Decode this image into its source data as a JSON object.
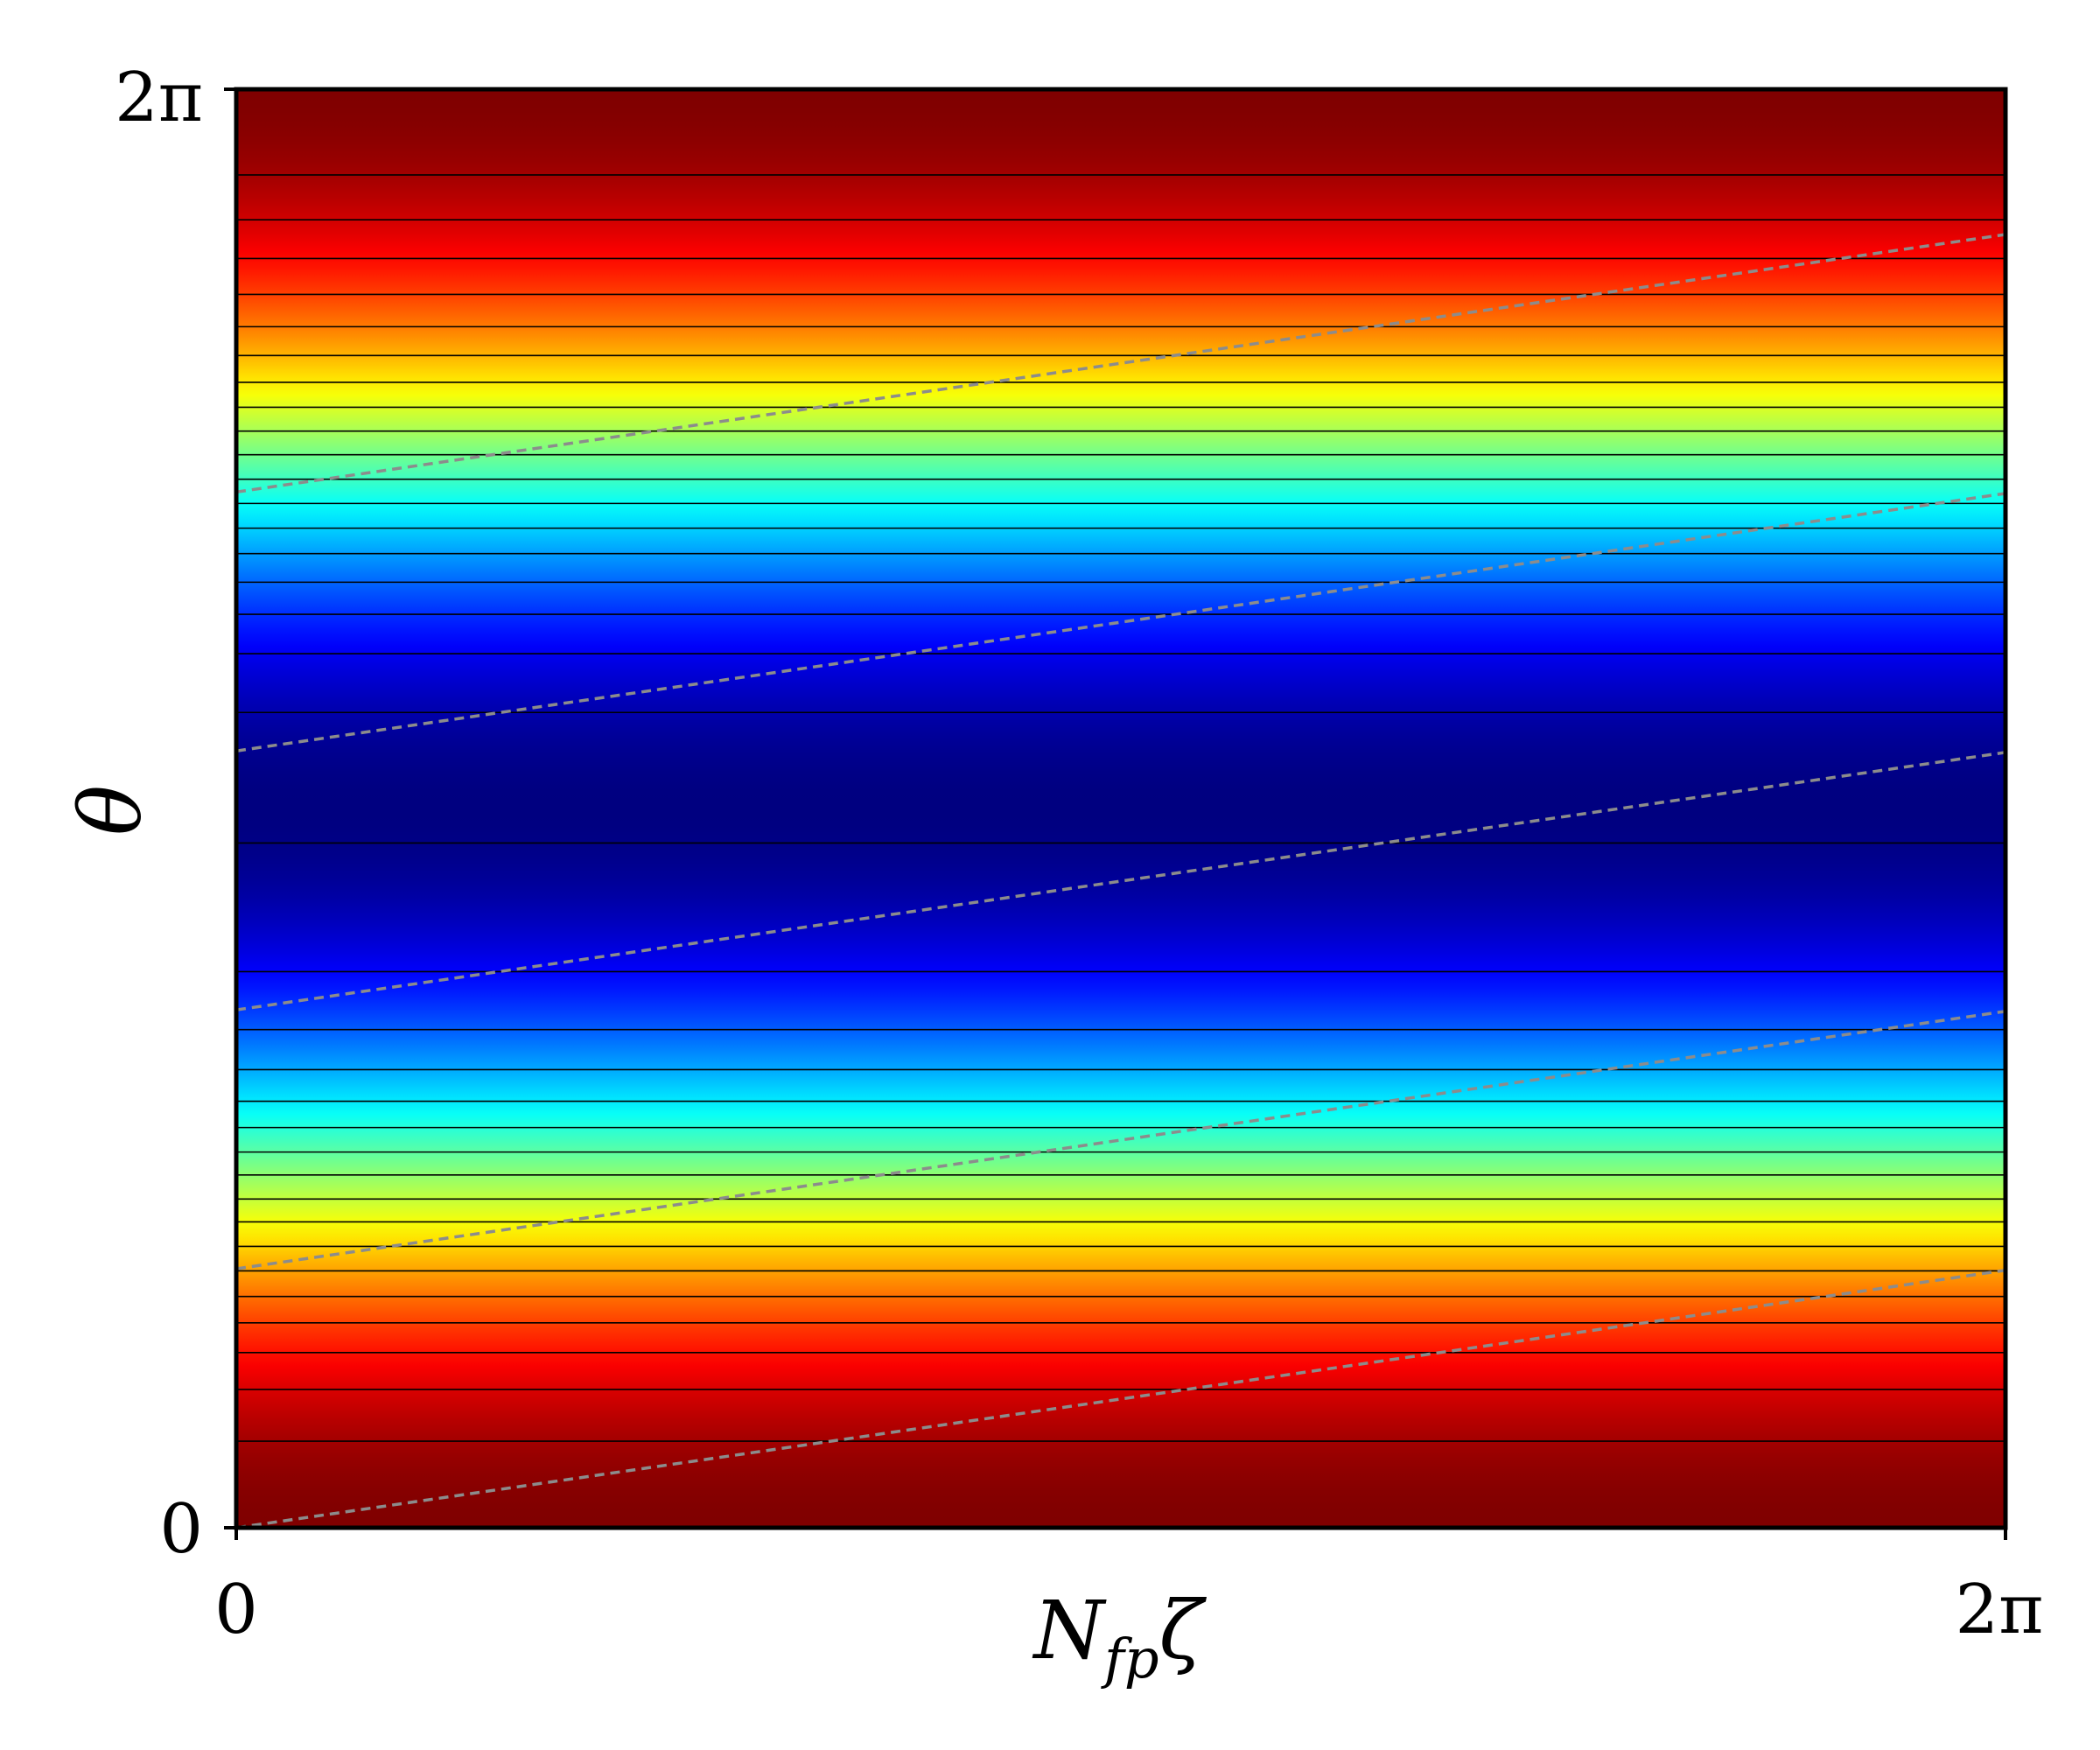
{
  "chart_data": {
    "type": "heatmap",
    "xlabel": {
      "main": "N",
      "sub": "fp",
      "tail": "ζ"
    },
    "ylabel": "θ",
    "x_ticks": [
      "0",
      "2π"
    ],
    "y_ticks": [
      "0",
      "2π"
    ],
    "xlim": [
      0,
      6.283185
    ],
    "ylim": [
      0,
      6.283185
    ],
    "colormap": "jet",
    "field": "f(θ) = cos(θ), constant along N_fp ζ",
    "contour_levels_theta": [
      0.378,
      0.604,
      0.765,
      0.895,
      1.01,
      1.122,
      1.229,
      1.336,
      1.436,
      1.541,
      1.641,
      1.748,
      1.863,
      2.001,
      2.176,
      2.429,
      2.991,
      3.561,
      3.818,
      3.99,
      4.13,
      4.255,
      4.366,
      4.474,
      4.58,
      4.687,
      4.79,
      4.894,
      5.003,
      5.12,
      5.246,
      5.387,
      5.544,
      5.713,
      5.909
    ],
    "field_lines": {
      "style": "dashed",
      "color": "#8c8c8c",
      "slope_dtheta_dzeta": 0.179,
      "theta_offsets": [
        0.0,
        1.131,
        2.262,
        3.393,
        4.524
      ]
    },
    "grid": false,
    "legend": "none"
  }
}
